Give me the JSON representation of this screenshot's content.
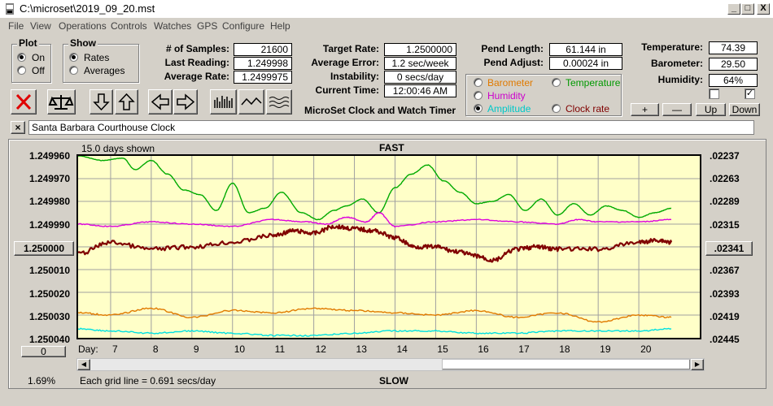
{
  "window": {
    "title": "C:\\microset\\2019_09_20.mst",
    "min_label": "_",
    "max_label": "□",
    "close_label": "X"
  },
  "menu": [
    "File",
    "View",
    "Operations",
    "Controls",
    "Watches",
    "GPS",
    "Configure",
    "Help"
  ],
  "plot_group": {
    "title": "Plot",
    "options": [
      {
        "label": "On",
        "selected": true
      },
      {
        "label": "Off",
        "selected": false
      }
    ]
  },
  "show_group": {
    "title": "Show",
    "options": [
      {
        "label": "Rates",
        "selected": true
      },
      {
        "label": "Averages",
        "selected": false
      }
    ]
  },
  "stats": {
    "samples_label": "# of Samples:",
    "samples": "21600",
    "last_reading_label": "Last Reading:",
    "last_reading": "1.249998",
    "average_rate_label": "Average Rate:",
    "average_rate": "1.2499975",
    "target_rate_label": "Target Rate:",
    "target_rate": "1.2500000",
    "average_error_label": "Average Error:",
    "average_error": "1.2 sec/week",
    "instability_label": "Instability:",
    "instability": "0 secs/day",
    "current_time_label": "Current Time:",
    "current_time": "12:00:46 AM",
    "app_name": "MicroSet Clock and Watch Timer"
  },
  "pendulum": {
    "length_label": "Pend Length:",
    "length": "61.144 in",
    "adjust_label": "Pend Adjust:",
    "adjust": "0.00024 in"
  },
  "overlay_group": {
    "options": [
      {
        "label": "Barometer",
        "color": "#e07a00",
        "selected": false
      },
      {
        "label": "Temperature",
        "color": "#009900",
        "selected": false
      },
      {
        "label": "Humidity",
        "color": "#cc00cc",
        "selected": false
      },
      {
        "label": "Amplitude",
        "color": "#00c8c8",
        "selected": true
      },
      {
        "label": "Clock rate",
        "color": "#800000",
        "selected": false
      }
    ]
  },
  "environment": {
    "temperature_label": "Temperature:",
    "temperature": "74.39",
    "barometer_label": "Barometer:",
    "barometer": "29.50",
    "humidity_label": "Humidity:",
    "humidity": "64%",
    "check1": false,
    "check2": true,
    "buttons": [
      "+",
      "—",
      "Up",
      "Down"
    ]
  },
  "clock_name": {
    "close_label": "×",
    "value": "Santa Barbara Courthouse Clock"
  },
  "chart_header": {
    "days_shown": "15.0 days shown",
    "fast_label": "FAST",
    "slow_label": "SLOW"
  },
  "chart_footer": {
    "percent": "1.69%",
    "grid_note": "Each grid line = 0.691 secs/day",
    "scroll_value": "0",
    "day_label": "Day:",
    "left_arrow": "◀",
    "right_arrow": "▶"
  },
  "center_button_left": "1.250000",
  "center_button_right": ".02341",
  "chart_data": {
    "type": "line",
    "x_label": "Day:",
    "xlim": [
      6.2,
      21.5
    ],
    "x_ticks": [
      "7",
      "8",
      "9",
      "10",
      "11",
      "12",
      "13",
      "14",
      "15",
      "16",
      "17",
      "18",
      "19",
      "20"
    ],
    "y_left_ticks": [
      "1.249960",
      "1.249970",
      "1.249980",
      "1.249990",
      "1.250000",
      "1.250010",
      "1.250020",
      "1.250030",
      "1.250040"
    ],
    "y_left_lim": [
      1.24996,
      1.25004
    ],
    "y_right_ticks": [
      ".02237",
      ".02263",
      ".02289",
      ".02315",
      ".02341",
      ".02367",
      ".02393",
      ".02419",
      ".02445"
    ],
    "y_right_lim": [
      0.02237,
      0.02445
    ],
    "grid": true,
    "series": [
      {
        "name": "Temperature",
        "color": "#00aa00",
        "x": [
          6.2,
          6.8,
          7.3,
          7.6,
          8.0,
          8.4,
          8.8,
          9.2,
          9.6,
          10.0,
          10.4,
          10.8,
          11.2,
          11.7,
          12.1,
          12.5,
          12.8,
          13.2,
          13.6,
          14.0,
          14.4,
          14.8,
          15.2,
          15.6,
          16.0,
          16.4,
          16.8,
          17.2,
          17.6,
          18.0,
          18.4,
          18.8,
          19.2,
          19.6,
          20.0,
          20.4,
          20.8
        ],
        "y": [
          1.24996,
          1.249962,
          1.249961,
          1.249966,
          1.249962,
          1.249968,
          1.249975,
          1.249977,
          1.249984,
          1.249972,
          1.249985,
          1.249983,
          1.249976,
          1.249985,
          1.249988,
          1.249984,
          1.249982,
          1.249979,
          1.249985,
          1.249974,
          1.249968,
          1.249964,
          1.249971,
          1.249976,
          1.249981,
          1.24998,
          1.249977,
          1.249984,
          1.249979,
          1.249986,
          1.249981,
          1.249986,
          1.249982,
          1.249984,
          1.249987,
          1.249985,
          1.249983
        ]
      },
      {
        "name": "Humidity",
        "color": "#dd00dd",
        "x": [
          6.2,
          7.0,
          8.0,
          9.0,
          10.0,
          11.0,
          11.8,
          12.3,
          12.8,
          13.3,
          13.6,
          14.0,
          15.0,
          16.0,
          17.0,
          18.0,
          18.5,
          19.0,
          20.0,
          20.8
        ],
        "y": [
          1.24999,
          1.249991,
          1.249989,
          1.24999,
          1.249991,
          1.249988,
          1.249989,
          1.24999,
          1.249987,
          1.249989,
          1.249985,
          1.249991,
          1.249989,
          1.249988,
          1.249989,
          1.24999,
          1.249988,
          1.249989,
          1.249989,
          1.249988
        ]
      },
      {
        "name": "Clock rate",
        "color": "#800000",
        "x": [
          6.2,
          7.0,
          8.0,
          9.0,
          10.0,
          11.0,
          11.5,
          12.0,
          12.5,
          13.0,
          13.5,
          14.0,
          14.5,
          15.0,
          15.5,
          16.0,
          16.4,
          17.0,
          17.5,
          18.0,
          19.0,
          20.0,
          20.5,
          20.8
        ],
        "y": [
          1.250003,
          1.249998,
          1.250001,
          1.25,
          1.249998,
          1.249995,
          1.249993,
          1.249994,
          1.249991,
          1.249992,
          1.249993,
          1.249996,
          1.25,
          1.25,
          1.250002,
          1.250004,
          1.250006,
          1.250001,
          1.25,
          1.250001,
          1.250001,
          1.249998,
          1.249997,
          1.249998
        ]
      },
      {
        "name": "Barometer",
        "color": "#e07a00",
        "x": [
          6.2,
          7.0,
          8.0,
          9.0,
          10.0,
          11.0,
          12.0,
          13.0,
          14.0,
          15.0,
          16.0,
          17.0,
          18.0,
          19.0,
          20.0,
          20.8
        ],
        "y": [
          1.250029,
          1.25003,
          1.250027,
          1.250031,
          1.250028,
          1.250029,
          1.250027,
          1.250028,
          1.250029,
          1.25003,
          1.250028,
          1.250031,
          1.250029,
          1.250033,
          1.25003,
          1.250031
        ]
      },
      {
        "name": "Amplitude",
        "color": "#00e0e0",
        "x": [
          6.2,
          7.0,
          8.0,
          9.0,
          10.0,
          11.0,
          12.0,
          13.0,
          14.0,
          15.0,
          16.0,
          17.0,
          18.0,
          19.0,
          20.0,
          20.8
        ],
        "y": [
          1.250036,
          1.250037,
          1.250038,
          1.250037,
          1.250038,
          1.250039,
          1.250039,
          1.250038,
          1.250037,
          1.250037,
          1.250038,
          1.250038,
          1.250037,
          1.250037,
          1.250037,
          1.250036
        ]
      }
    ]
  }
}
